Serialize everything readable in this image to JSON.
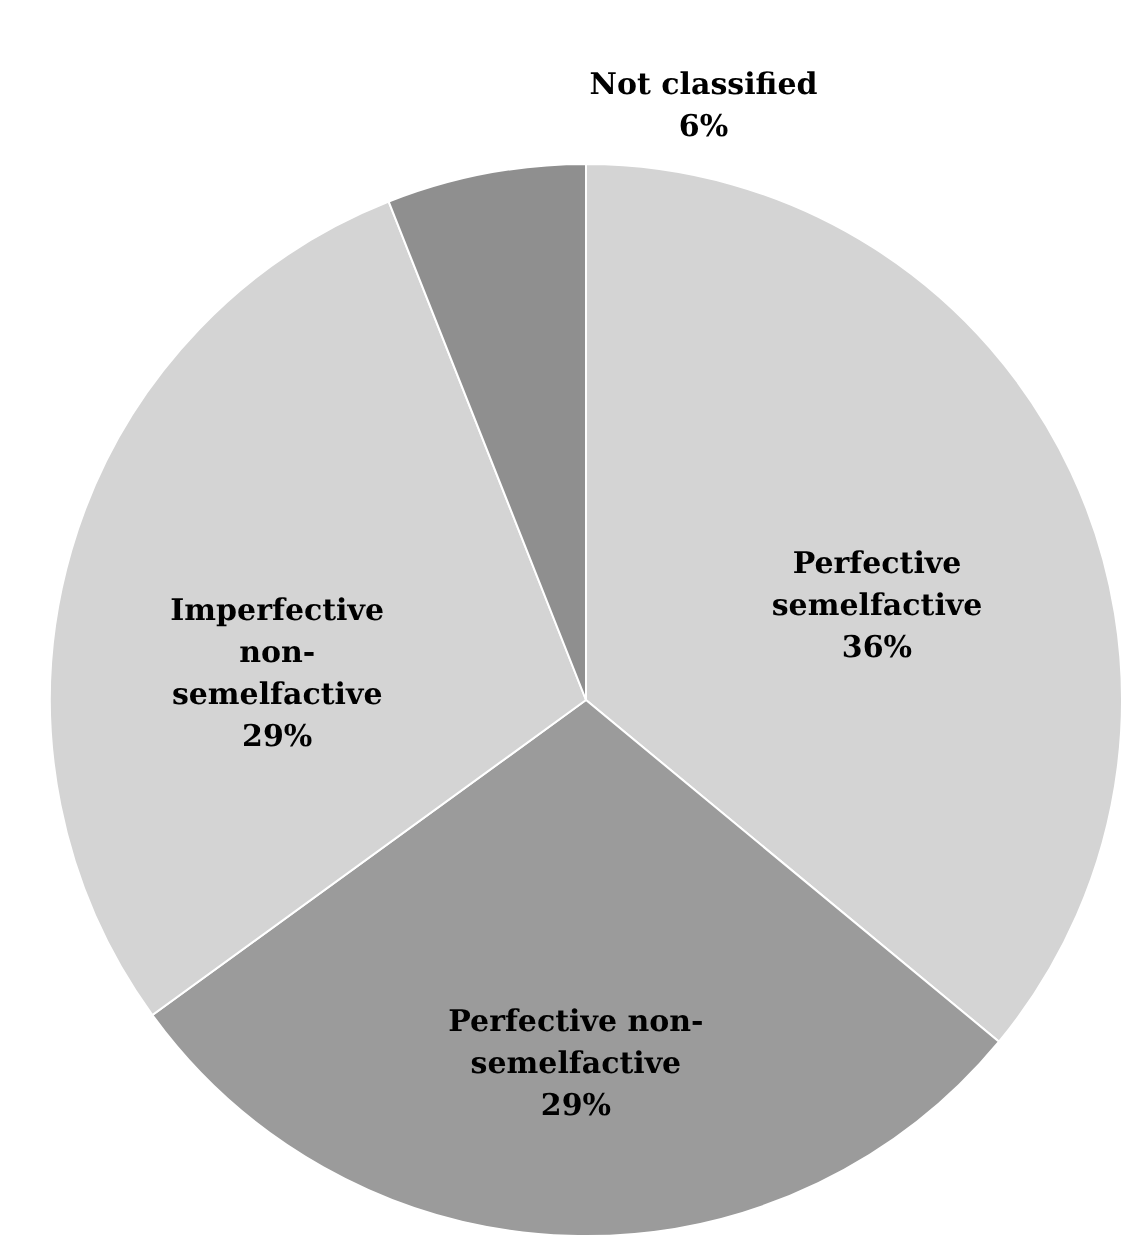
{
  "chart_data": {
    "type": "pie",
    "categories": [
      "Perfective semelfactive",
      "Perfective non-semelfactive",
      "Imperfective non-semelfactive",
      "Not classified"
    ],
    "values": [
      36,
      29,
      29,
      6
    ],
    "colors": [
      "#d4d4d4",
      "#9b9b9b",
      "#d4d4d4",
      "#8f8f8f"
    ],
    "value_labels": [
      "36%",
      "29%",
      "29%",
      "6%"
    ]
  }
}
